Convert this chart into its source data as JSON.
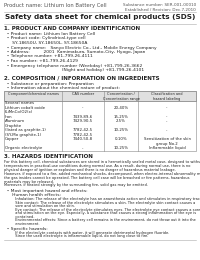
{
  "title": "Safety data sheet for chemical products (SDS)",
  "header_left": "Product name: Lithium Ion Battery Cell",
  "header_right": "Substance number: SER-001-00010\nEstablished / Revision: Dec.7,2010",
  "section1_title": "1. PRODUCT AND COMPANY IDENTIFICATION",
  "section1_lines": [
    "  • Product name: Lithium Ion Battery Cell",
    "  • Product code: Cylindrical-type cell",
    "      SY-18650U, SY-18650L, SY-18650A",
    "  • Company name:   Sanyo Electric Co., Ltd., Mobile Energy Company",
    "  • Address:          2001  Kamimakura, Sumoto-City, Hyogo, Japan",
    "  • Telephone number: +81-799-26-4111",
    "  • Fax number: +81-799-26-4129",
    "  • Emergency telephone number (Weekday) +81-799-26-3662",
    "                                          (Night and holiday) +81-799-26-4101"
  ],
  "section2_title": "2. COMPOSITION / INFORMATION ON INGREDIENTS",
  "section2_intro": "  • Substance or preparation: Preparation",
  "section2_sub": "  • Information about the chemical nature of product:",
  "table_headers": [
    "Component/chemical names",
    "CAS number",
    "Concentration /\nConcentration range",
    "Classification and\nhazard labeling"
  ],
  "table_rows": [
    [
      "Several names",
      "",
      "",
      ""
    ],
    [
      "Lithium cobalt oxide",
      "-",
      "20-40%",
      "-"
    ],
    [
      "(LiMnCo)O2(x)",
      "",
      "",
      ""
    ],
    [
      "Iron",
      "7439-89-6",
      "15-25%",
      "-"
    ],
    [
      "Aluminum",
      "7429-90-5",
      "2.5%",
      "-"
    ],
    [
      "Graphite",
      "",
      "",
      ""
    ],
    [
      "(listed as graphite-1)",
      "7782-42-5",
      "10-25%",
      "-"
    ],
    [
      "(SY-Mo graphite-1)",
      "7782-42-5",
      "",
      ""
    ],
    [
      "Copper",
      "7440-50-8",
      "0-10%",
      "Sensitization of the skin"
    ],
    [
      "",
      "",
      "",
      "group No.2"
    ],
    [
      "Organic electrolyte",
      "-",
      "10-25%",
      "Inflammable liquid"
    ]
  ],
  "section3_title": "3. HAZARDS IDENTIFICATION",
  "section3_para1": "For this battery cell, chemical substances are stored in a hermetically sealed metal case, designed to withstand",
  "section3_para2": "temperatures in practical-use conditions during normal use. As a result, during normal use, there is no",
  "section3_para3": "physical danger of ignition or explosion and there is no danger of hazardous material leakage.",
  "section3_para4": "However, if exposed to a fire, added mechanical shocks, decomposed, when electro-internal abnormality make case,",
  "section3_para5": "the gas insides cannot be operated. The battery cell case will be breached or fire patterns, hazardous",
  "section3_para6": "materials may be released.",
  "section3_para7": "Moreover, if heated strongly by the surrounding fire, solid gas may be emitted.",
  "section3_hazards": "  • Most important hazard and effects:",
  "section3_human": "      Human health effects:",
  "section3_human_lines": [
    "          Inhalation: The release of the electrolyte has an anaesthesia action and stimulates in respiratory tract.",
    "          Skin contact: The release of the electrolyte stimulates a skin. The electrolyte skin contact causes a",
    "          sore and stimulation on the skin.",
    "          Eye contact: The release of the electrolyte stimulates eyes. The electrolyte eye contact causes a sore",
    "          and stimulation on the eye. Especially, a substance that causes a strong inflammation of the eye is",
    "          contained.",
    "          Environmental effects: Since a battery cell remains in the environment, do not throw out it into the",
    "          environment."
  ],
  "section3_specific": "  • Specific hazards:",
  "section3_specific_lines": [
    "          If the electrolyte contacts with water, it will generate detrimental hydrogen fluoride.",
    "          Since the used electrolyte is inflammable liquid, do not long close to fire."
  ],
  "bg_color": "#ffffff",
  "text_color": "#222222",
  "gray_text": "#555555",
  "line_color": "#aaaaaa",
  "table_line_color": "#888888"
}
